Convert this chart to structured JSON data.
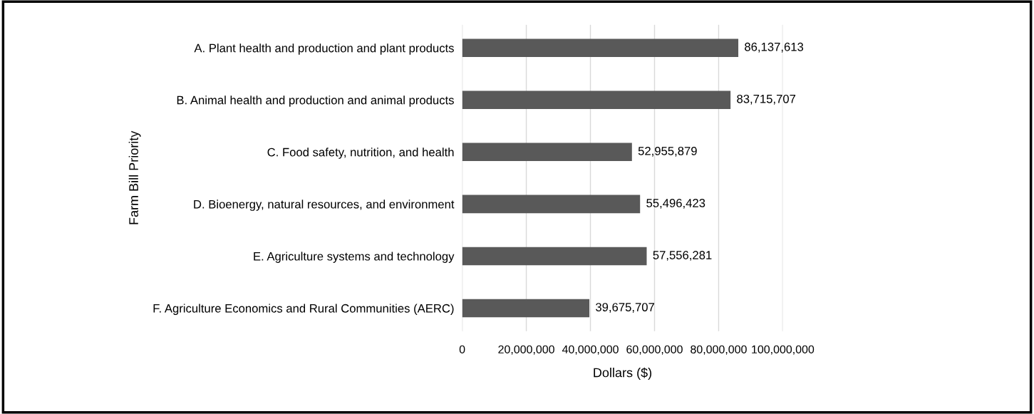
{
  "chart_data": {
    "type": "bar",
    "orientation": "horizontal",
    "ylabel": "Farm Bill Priority",
    "xlabel": "Dollars ($)",
    "categories": [
      "A. Plant health and production and plant products",
      "B. Animal health and production and animal products",
      "C. Food safety, nutrition, and health",
      "D. Bioenergy, natural resources, and environment",
      "E. Agriculture systems and technology",
      "F. Agriculture Economics and Rural Communities (AERC)"
    ],
    "values": [
      86137613,
      83715707,
      52955879,
      55496423,
      57556281,
      39675707
    ],
    "color": "#595959",
    "value_labels": [
      "86,137,613",
      "83,715,707",
      "52,955,879",
      "55,496,423",
      "57,556,281",
      "39,675,707"
    ],
    "xlim": [
      0,
      100000000
    ],
    "xticks": [
      0,
      {
        "value": 20000000,
        "label": "20,000,000"
      },
      {
        "value": 40000000,
        "label": "40,000,000"
      },
      {
        "value": 60000000,
        "label": "60,000,000"
      },
      {
        "value": 80000000,
        "label": "80,000,000"
      },
      {
        "value": 100000000,
        "label": "100,000,000"
      }
    ],
    "grid": "x",
    "legend": false
  }
}
